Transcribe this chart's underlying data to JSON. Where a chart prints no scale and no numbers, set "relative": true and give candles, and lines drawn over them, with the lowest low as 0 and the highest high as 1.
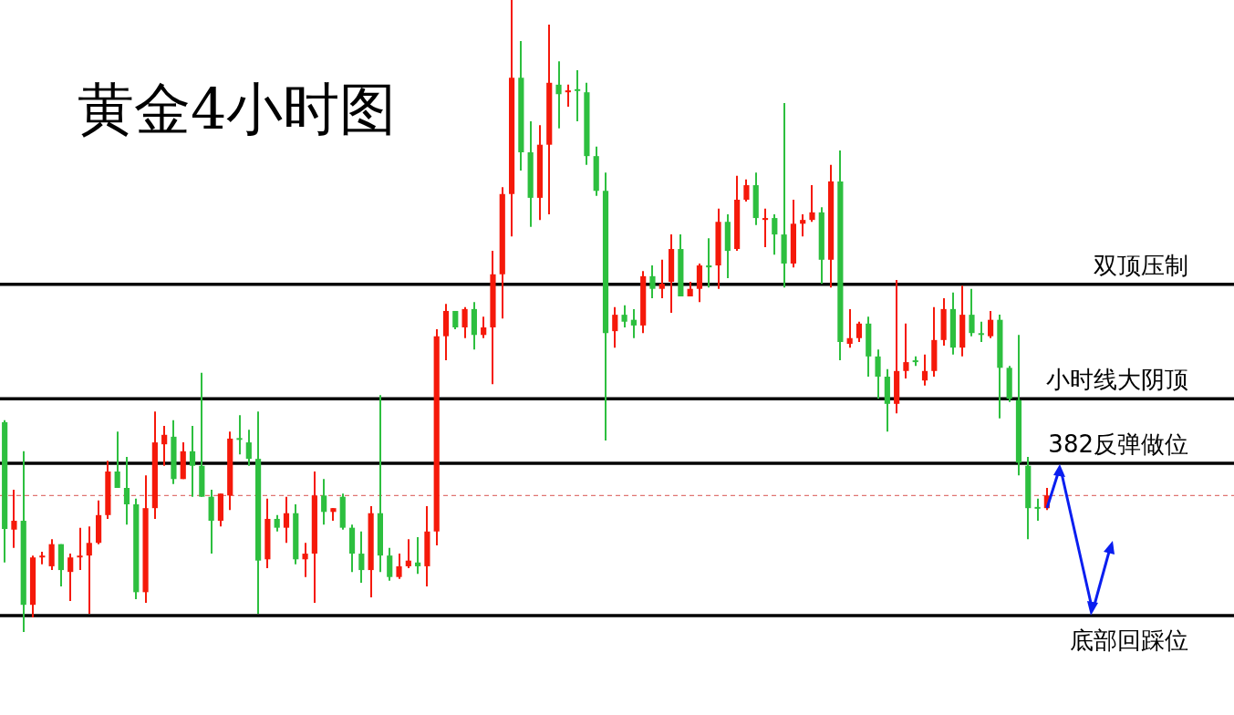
{
  "chart_data": {
    "type": "candlestick",
    "title": "黄金4小时图",
    "relative": true,
    "categories": [
      null,
      null,
      null,
      null,
      null,
      null,
      null,
      null,
      null,
      null,
      null,
      null,
      null,
      null,
      null,
      null,
      null,
      null,
      null,
      null,
      null,
      null,
      null,
      null,
      null,
      null,
      null,
      null,
      null,
      null,
      null,
      null,
      null,
      null,
      null,
      null,
      null,
      null,
      null,
      null,
      null,
      null,
      null,
      null,
      null,
      null,
      null,
      null,
      null,
      null,
      null,
      null,
      null,
      null,
      null,
      null,
      null,
      null,
      null,
      null,
      null,
      null,
      null,
      null,
      null,
      null,
      null,
      null,
      null,
      null,
      null,
      null,
      null,
      null,
      null,
      null,
      null,
      null,
      null,
      null,
      null,
      null,
      null,
      null,
      null,
      null,
      null,
      null,
      null,
      null,
      null,
      null,
      null,
      null,
      null,
      null,
      null,
      null,
      null,
      null,
      null,
      null,
      null,
      null,
      null,
      null,
      null,
      null,
      null,
      null,
      null,
      null
    ],
    "ohlc": [
      [
        0.332,
        0.335,
        0.11,
        0.163
      ],
      [
        0.162,
        0.225,
        0.133,
        0.176
      ],
      [
        0.176,
        0.286,
        0,
        0.043
      ],
      [
        0.043,
        0.121,
        0.023,
        0.118
      ],
      [
        0.118,
        0.127,
        0.107,
        0.12
      ],
      [
        0.104,
        0.147,
        0.098,
        0.139
      ],
      [
        0.139,
        0.139,
        0.072,
        0.098
      ],
      [
        0.095,
        0.124,
        0.049,
        0.118
      ],
      [
        0.118,
        0.165,
        0.098,
        0.12
      ],
      [
        0.121,
        0.167,
        0.029,
        0.141
      ],
      [
        0.141,
        0.208,
        0.139,
        0.185
      ],
      [
        0.185,
        0.271,
        0.179,
        0.254
      ],
      [
        0.254,
        0.317,
        0.228,
        0.228
      ],
      [
        0.228,
        0.277,
        0.17,
        0.202
      ],
      [
        0.202,
        0.211,
        0.052,
        0.063
      ],
      [
        0.063,
        0.248,
        0.046,
        0.196
      ],
      [
        0.196,
        0.349,
        0.179,
        0.3
      ],
      [
        0.297,
        0.326,
        0.263,
        0.312
      ],
      [
        0.309,
        0.335,
        0.234,
        0.242
      ],
      [
        0.242,
        0.3,
        0.242,
        0.286
      ],
      [
        0.286,
        0.326,
        0.214,
        0.263
      ],
      [
        0.263,
        0.41,
        0.214,
        0.214
      ],
      [
        0.214,
        0.225,
        0.124,
        0.176
      ],
      [
        0.176,
        0.219,
        0.167,
        0.219
      ],
      [
        0.216,
        0.317,
        0.193,
        0.306
      ],
      [
        0.306,
        0.343,
        0.281,
        0.304
      ],
      [
        0.3,
        0.32,
        0.263,
        0.274
      ],
      [
        0.274,
        0.349,
        0.029,
        0.113
      ],
      [
        0.115,
        0.211,
        0.101,
        0.179
      ],
      [
        0.179,
        0.185,
        0.159,
        0.165
      ],
      [
        0.165,
        0.214,
        0.141,
        0.188
      ],
      [
        0.188,
        0.202,
        0.107,
        0.115
      ],
      [
        0.115,
        0.141,
        0.087,
        0.124
      ],
      [
        0.124,
        0.254,
        0.046,
        0.216
      ],
      [
        0.216,
        0.242,
        0.17,
        0.19
      ],
      [
        0.19,
        0.196,
        0.176,
        0.196
      ],
      [
        0.214,
        0.219,
        0.162,
        0.165
      ],
      [
        0.165,
        0.17,
        0.095,
        0.124
      ],
      [
        0.124,
        0.159,
        0.078,
        0.098
      ],
      [
        0.098,
        0.199,
        0.055,
        0.188
      ],
      [
        0.188,
        0.375,
        0.095,
        0.121
      ],
      [
        0.121,
        0.133,
        0.081,
        0.087
      ],
      [
        0.087,
        0.124,
        0.084,
        0.104
      ],
      [
        0.104,
        0.147,
        0.101,
        0.113
      ],
      [
        0.11,
        0.15,
        0.092,
        0.104
      ],
      [
        0.104,
        0.199,
        0.072,
        0.159
      ],
      [
        0.159,
        0.479,
        0.137,
        0.468
      ],
      [
        0.468,
        0.519,
        0.43,
        0.508
      ],
      [
        0.508,
        0.508,
        0.479,
        0.482
      ],
      [
        0.482,
        0.514,
        0.465,
        0.511
      ],
      [
        0.511,
        0.522,
        0.447,
        0.47
      ],
      [
        0.47,
        0.499,
        0.465,
        0.482
      ],
      [
        0.482,
        0.603,
        0.392,
        0.566
      ],
      [
        0.566,
        0.704,
        0.496,
        0.693
      ],
      [
        0.693,
        1,
        0.626,
        0.877
      ],
      [
        0.877,
        0.935,
        0.73,
        0.759
      ],
      [
        0.759,
        0.808,
        0.641,
        0.687
      ],
      [
        0.687,
        0.802,
        0.652,
        0.771
      ],
      [
        0.771,
        0.961,
        0.661,
        0.869
      ],
      [
        0.866,
        0.903,
        0.797,
        0.851
      ],
      [
        0.854,
        0.866,
        0.831,
        0.857
      ],
      [
        0.857,
        0.889,
        0.808,
        0.856
      ],
      [
        0.854,
        0.869,
        0.739,
        0.753
      ],
      [
        0.753,
        0.768,
        0.69,
        0.698
      ],
      [
        0.698,
        0.727,
        0.303,
        0.473
      ],
      [
        0.476,
        0.514,
        0.45,
        0.502
      ],
      [
        0.502,
        0.517,
        0.482,
        0.491
      ],
      [
        0.494,
        0.511,
        0.465,
        0.485
      ],
      [
        0.485,
        0.571,
        0.473,
        0.563
      ],
      [
        0.563,
        0.58,
        0.528,
        0.543
      ],
      [
        0.543,
        0.589,
        0.528,
        0.551
      ],
      [
        0.554,
        0.629,
        0.505,
        0.606
      ],
      [
        0.606,
        0.629,
        0.531,
        0.531
      ],
      [
        0.531,
        0.554,
        0.531,
        0.543
      ],
      [
        0.543,
        0.583,
        0.522,
        0.58
      ],
      [
        0.58,
        0.623,
        0.545,
        0.577
      ],
      [
        0.58,
        0.67,
        0.543,
        0.649
      ],
      [
        0.649,
        0.661,
        0.56,
        0.603
      ],
      [
        0.606,
        0.722,
        0.603,
        0.684
      ],
      [
        0.684,
        0.716,
        0.681,
        0.707
      ],
      [
        0.707,
        0.727,
        0.644,
        0.655
      ],
      [
        0.652,
        0.67,
        0.609,
        0.655
      ],
      [
        0.655,
        0.661,
        0.597,
        0.629
      ],
      [
        0.629,
        0.837,
        0.545,
        0.583
      ],
      [
        0.583,
        0.684,
        0.577,
        0.646
      ],
      [
        0.646,
        0.661,
        0.626,
        0.652
      ],
      [
        0.652,
        0.707,
        0.649,
        0.664
      ],
      [
        0.664,
        0.672,
        0.551,
        0.589
      ],
      [
        0.589,
        0.739,
        0.545,
        0.713
      ],
      [
        0.713,
        0.762,
        0.43,
        0.459
      ],
      [
        0.456,
        0.511,
        0.45,
        0.465
      ],
      [
        0.465,
        0.491,
        0.459,
        0.488
      ],
      [
        0.488,
        0.499,
        0.404,
        0.436
      ],
      [
        0.436,
        0.447,
        0.369,
        0.404
      ],
      [
        0.404,
        0.416,
        0.317,
        0.361
      ],
      [
        0.361,
        0.557,
        0.346,
        0.413
      ],
      [
        0.413,
        0.488,
        0.401,
        0.427
      ],
      [
        0.429,
        0.436,
        0.421,
        0.427
      ],
      [
        0.398,
        0.439,
        0.39,
        0.413
      ],
      [
        0.413,
        0.514,
        0.404,
        0.462
      ],
      [
        0.462,
        0.528,
        0.453,
        0.511
      ],
      [
        0.511,
        0.537,
        0.439,
        0.45
      ],
      [
        0.45,
        0.548,
        0.436,
        0.502
      ],
      [
        0.502,
        0.543,
        0.468,
        0.473
      ],
      [
        0.472,
        0.491,
        0.459,
        0.47
      ],
      [
        0.468,
        0.508,
        0.465,
        0.494
      ],
      [
        0.494,
        0.502,
        0.338,
        0.418
      ],
      [
        0.418,
        0.421,
        0.364,
        0.369
      ],
      [
        0.367,
        0.47,
        0.248,
        0.268
      ],
      [
        0.263,
        0.277,
        0.147,
        0.196
      ],
      [
        0.196,
        0.211,
        0.176,
        0.195
      ],
      [
        0.196,
        0.228,
        0.193,
        0.216
      ]
    ],
    "colors": [
      "#2dbf3f",
      "#f5190a",
      "#2dbf3f",
      "#f5190a",
      "#f5190a",
      "#f5190a",
      "#2dbf3f",
      "#f5190a",
      "#f5190a",
      "#f5190a",
      "#f5190a",
      "#f5190a",
      "#2dbf3f",
      "#2dbf3f",
      "#2dbf3f",
      "#f5190a",
      "#f5190a",
      "#f5190a",
      "#2dbf3f",
      "#f5190a",
      "#2dbf3f",
      "#2dbf3f",
      "#2dbf3f",
      "#f5190a",
      "#f5190a",
      "#2dbf3f",
      "#2dbf3f",
      "#2dbf3f",
      "#f5190a",
      "#2dbf3f",
      "#f5190a",
      "#2dbf3f",
      "#f5190a",
      "#f5190a",
      "#2dbf3f",
      "#f5190a",
      "#2dbf3f",
      "#2dbf3f",
      "#2dbf3f",
      "#f5190a",
      "#2dbf3f",
      "#2dbf3f",
      "#f5190a",
      "#f5190a",
      "#2dbf3f",
      "#f5190a",
      "#f5190a",
      "#f5190a",
      "#2dbf3f",
      "#f5190a",
      "#2dbf3f",
      "#f5190a",
      "#f5190a",
      "#f5190a",
      "#f5190a",
      "#2dbf3f",
      "#2dbf3f",
      "#f5190a",
      "#f5190a",
      "#2dbf3f",
      "#f5190a",
      "#2dbf3f",
      "#2dbf3f",
      "#2dbf3f",
      "#2dbf3f",
      "#f5190a",
      "#2dbf3f",
      "#2dbf3f",
      "#f5190a",
      "#2dbf3f",
      "#f5190a",
      "#f5190a",
      "#2dbf3f",
      "#f5190a",
      "#f5190a",
      "#2dbf3f",
      "#f5190a",
      "#2dbf3f",
      "#f5190a",
      "#f5190a",
      "#2dbf3f",
      "#f5190a",
      "#2dbf3f",
      "#2dbf3f",
      "#f5190a",
      "#f5190a",
      "#f5190a",
      "#2dbf3f",
      "#f5190a",
      "#2dbf3f",
      "#f5190a",
      "#f5190a",
      "#2dbf3f",
      "#2dbf3f",
      "#2dbf3f",
      "#f5190a",
      "#f5190a",
      "#2dbf3f",
      "#f5190a",
      "#f5190a",
      "#f5190a",
      "#2dbf3f",
      "#f5190a",
      "#2dbf3f",
      "#2dbf3f",
      "#f5190a",
      "#2dbf3f",
      "#2dbf3f",
      "#2dbf3f",
      "#2dbf3f",
      "#2dbf3f",
      "#f5190a"
    ],
    "ref_lines": [
      {
        "axis": "y",
        "value": 0.55,
        "label": "双顶压制",
        "color": "#000000"
      },
      {
        "axis": "y",
        "value": 0.369,
        "label": "小时线大阴顶",
        "color": "#000000"
      },
      {
        "axis": "y",
        "value": 0.267,
        "label": "382反弹做位",
        "color": "#000000"
      },
      {
        "axis": "y",
        "value": 0.216,
        "color": "#d9534f",
        "line_style": "dashed"
      },
      {
        "axis": "y",
        "value": 0.026,
        "label": "底部回踩位",
        "color": "#000000"
      }
    ]
  }
}
